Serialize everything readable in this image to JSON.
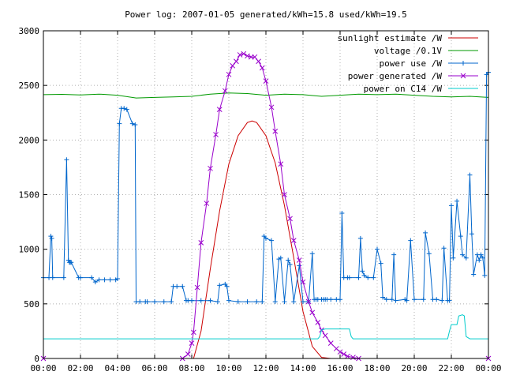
{
  "chart_data": {
    "type": "line",
    "title": "Power log: 2007-01-05 generated/kWh=15.8 used/kWh=19.5",
    "xlabel": "",
    "ylabel": "",
    "x_unit": "hours",
    "xlim": [
      0,
      24
    ],
    "ylim": [
      0,
      3000
    ],
    "x_ticks": [
      {
        "value": 0,
        "label": "00:00"
      },
      {
        "value": 2,
        "label": "02:00"
      },
      {
        "value": 4,
        "label": "04:00"
      },
      {
        "value": 6,
        "label": "06:00"
      },
      {
        "value": 8,
        "label": "08:00"
      },
      {
        "value": 10,
        "label": "10:00"
      },
      {
        "value": 12,
        "label": "12:00"
      },
      {
        "value": 14,
        "label": "14:00"
      },
      {
        "value": 16,
        "label": "16:00"
      },
      {
        "value": 18,
        "label": "18:00"
      },
      {
        "value": 20,
        "label": "20:00"
      },
      {
        "value": 22,
        "label": "22:00"
      },
      {
        "value": 24,
        "label": "00:00"
      }
    ],
    "y_ticks": [
      {
        "value": 0,
        "label": "0"
      },
      {
        "value": 500,
        "label": "500"
      },
      {
        "value": 1000,
        "label": "1000"
      },
      {
        "value": 1500,
        "label": "1500"
      },
      {
        "value": 2000,
        "label": "2000"
      },
      {
        "value": 2500,
        "label": "2500"
      },
      {
        "value": 3000,
        "label": "3000"
      }
    ],
    "grid": true,
    "legend_position": "top-right",
    "series": [
      {
        "name": "sunlight estimate /W",
        "color": "#cc0000",
        "style": "line",
        "x": [
          8.1,
          8.5,
          9.0,
          9.5,
          10.0,
          10.5,
          11.0,
          11.25,
          11.5,
          12.0,
          12.5,
          13.0,
          13.5,
          14.0,
          14.5,
          15.0,
          15.5
        ],
        "y": [
          0,
          250,
          820,
          1350,
          1780,
          2040,
          2160,
          2175,
          2160,
          2040,
          1790,
          1400,
          920,
          430,
          110,
          10,
          0
        ]
      },
      {
        "name": "voltage /0.1V",
        "color": "#009900",
        "style": "line",
        "x": [
          0,
          1,
          2,
          3,
          4,
          5,
          6,
          7,
          8,
          9,
          10,
          11,
          12,
          13,
          14,
          15,
          16,
          17,
          18,
          19,
          20,
          21,
          22,
          23,
          24
        ],
        "y": [
          2415,
          2418,
          2412,
          2420,
          2410,
          2385,
          2390,
          2395,
          2400,
          2420,
          2430,
          2425,
          2410,
          2420,
          2415,
          2400,
          2410,
          2420,
          2415,
          2420,
          2410,
          2400,
          2395,
          2400,
          2390
        ]
      },
      {
        "name": "power use /W",
        "color": "#0066cc",
        "style": "linespoints-plus",
        "x": [
          0,
          0.3,
          0.4,
          0.45,
          0.5,
          1.1,
          1.25,
          1.35,
          1.4,
          1.45,
          1.5,
          1.9,
          2.0,
          2.6,
          2.8,
          3.0,
          3.3,
          3.6,
          3.9,
          4.0,
          4.1,
          4.2,
          4.35,
          4.5,
          4.8,
          4.95,
          5.0,
          5.2,
          5.5,
          5.6,
          6.0,
          6.5,
          6.9,
          7.0,
          7.2,
          7.5,
          7.7,
          7.8,
          8.0,
          8.5,
          9.0,
          9.4,
          9.5,
          9.8,
          9.9,
          10.0,
          10.5,
          11.0,
          11.5,
          11.8,
          11.9,
          12.0,
          12.3,
          12.5,
          12.7,
          12.8,
          13.0,
          13.2,
          13.3,
          13.5,
          13.8,
          14.0,
          14.3,
          14.5,
          14.6,
          14.7,
          14.8,
          15.0,
          15.1,
          15.2,
          15.3,
          15.5,
          15.8,
          16.0,
          16.1,
          16.2,
          16.4,
          16.5,
          17.0,
          17.1,
          17.2,
          17.3,
          17.5,
          17.8,
          18.0,
          18.2,
          18.3,
          18.5,
          18.8,
          18.9,
          19.0,
          19.5,
          19.6,
          19.8,
          20.0,
          20.5,
          20.6,
          20.8,
          21.0,
          21.2,
          21.5,
          21.6,
          21.8,
          21.9,
          22.0,
          22.1,
          22.3,
          22.5,
          22.6,
          22.8,
          23.0,
          23.1,
          23.2,
          23.4,
          23.5,
          23.6,
          23.7,
          23.8,
          23.9,
          24.0
        ],
        "y": [
          740,
          740,
          1120,
          1100,
          740,
          740,
          1820,
          900,
          880,
          880,
          880,
          740,
          740,
          740,
          700,
          720,
          720,
          720,
          720,
          730,
          2150,
          2290,
          2290,
          2280,
          2150,
          2140,
          520,
          520,
          520,
          520,
          520,
          520,
          520,
          660,
          660,
          660,
          530,
          530,
          530,
          530,
          530,
          520,
          670,
          680,
          660,
          530,
          520,
          520,
          520,
          520,
          1120,
          1100,
          1080,
          520,
          910,
          920,
          520,
          900,
          860,
          520,
          850,
          520,
          520,
          960,
          540,
          540,
          540,
          540,
          540,
          540,
          540,
          540,
          540,
          540,
          1330,
          740,
          740,
          740,
          740,
          1100,
          800,
          760,
          740,
          740,
          1000,
          870,
          560,
          540,
          540,
          950,
          530,
          540,
          530,
          1080,
          540,
          540,
          1150,
          960,
          540,
          540,
          530,
          1010,
          530,
          530,
          1400,
          920,
          1440,
          1120,
          950,
          920,
          1680,
          1140,
          770,
          950,
          900,
          950,
          920,
          760,
          2600,
          2620
        ]
      },
      {
        "name": "power generated /W",
        "color": "#9900cc",
        "style": "linespoints-x",
        "x": [
          0,
          7.5,
          7.8,
          8.0,
          8.1,
          8.3,
          8.5,
          8.8,
          9.0,
          9.3,
          9.5,
          9.8,
          10.0,
          10.2,
          10.4,
          10.6,
          10.8,
          11.0,
          11.2,
          11.4,
          11.6,
          11.8,
          12.0,
          12.3,
          12.5,
          12.8,
          13.0,
          13.3,
          13.5,
          13.8,
          14.0,
          14.3,
          14.5,
          14.8,
          15.0,
          15.2,
          15.5,
          15.8,
          16.0,
          16.2,
          16.4,
          16.7,
          17.0,
          24.0
        ],
        "y": [
          0,
          0,
          40,
          140,
          240,
          650,
          1060,
          1420,
          1740,
          2050,
          2280,
          2450,
          2600,
          2680,
          2720,
          2780,
          2790,
          2770,
          2760,
          2760,
          2720,
          2660,
          2540,
          2300,
          2080,
          1780,
          1500,
          1280,
          1080,
          900,
          700,
          520,
          420,
          330,
          260,
          210,
          140,
          90,
          60,
          40,
          20,
          10,
          0,
          0
        ]
      },
      {
        "name": "power on C14 /W",
        "color": "#00cccc",
        "style": "line",
        "x": [
          0,
          14.8,
          14.9,
          15.0,
          15.2,
          15.5,
          15.8,
          16.0,
          16.3,
          16.5,
          16.6,
          16.7,
          17.0,
          21.8,
          21.9,
          22.0,
          22.3,
          22.4,
          22.6,
          22.7,
          22.8,
          23.0,
          23.1,
          23.2,
          24.0
        ],
        "y": [
          180,
          180,
          200,
          260,
          270,
          270,
          270,
          270,
          270,
          270,
          200,
          180,
          180,
          180,
          250,
          310,
          310,
          390,
          400,
          390,
          200,
          180,
          180,
          180,
          180
        ]
      }
    ]
  }
}
